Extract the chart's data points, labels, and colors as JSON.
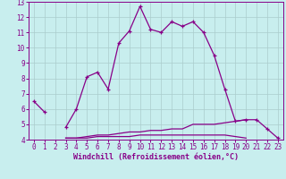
{
  "xlabel": "Windchill (Refroidissement éolien,°C)",
  "x": [
    0,
    1,
    2,
    3,
    4,
    5,
    6,
    7,
    8,
    9,
    10,
    11,
    12,
    13,
    14,
    15,
    16,
    17,
    18,
    19,
    20,
    21,
    22,
    23
  ],
  "line1": [
    6.5,
    5.8,
    null,
    4.8,
    6.0,
    8.1,
    8.4,
    7.3,
    10.3,
    11.1,
    12.7,
    11.2,
    11.0,
    11.7,
    11.4,
    11.7,
    11.0,
    9.5,
    7.3,
    5.2,
    5.3,
    5.3,
    4.7,
    4.1
  ],
  "line2": [
    null,
    null,
    null,
    4.1,
    4.1,
    4.2,
    4.3,
    4.3,
    4.4,
    4.5,
    4.5,
    4.6,
    4.6,
    4.7,
    4.7,
    5.0,
    5.0,
    5.0,
    5.1,
    5.2,
    5.3,
    null,
    null,
    null
  ],
  "line3": [
    null,
    null,
    null,
    4.1,
    4.1,
    4.1,
    4.2,
    4.2,
    4.2,
    4.2,
    4.3,
    4.3,
    4.3,
    4.3,
    4.3,
    4.3,
    4.3,
    4.3,
    4.3,
    4.2,
    4.1,
    null,
    null,
    null
  ],
  "line_color": "#880088",
  "bg_color": "#c8eeee",
  "grid_color": "#aacccc",
  "ylim": [
    4,
    13
  ],
  "xlim": [
    -0.5,
    23.5
  ],
  "yticks": [
    4,
    5,
    6,
    7,
    8,
    9,
    10,
    11,
    12,
    13
  ],
  "xticks": [
    0,
    1,
    2,
    3,
    4,
    5,
    6,
    7,
    8,
    9,
    10,
    11,
    12,
    13,
    14,
    15,
    16,
    17,
    18,
    19,
    20,
    21,
    22,
    23
  ],
  "tick_fontsize": 5.5,
  "xlabel_fontsize": 6.0
}
